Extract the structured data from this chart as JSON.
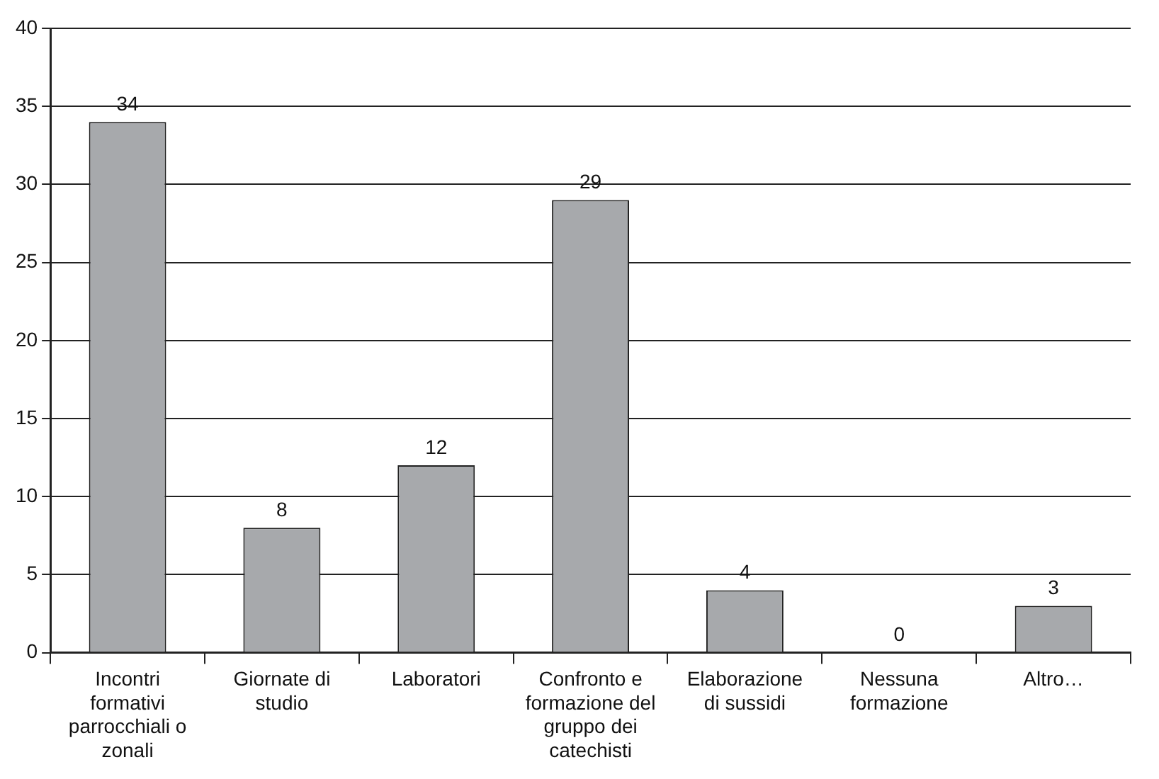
{
  "chart_data": {
    "type": "bar",
    "categories": [
      "Incontri formativi parrocchiali o zonali",
      "Giornate di studio",
      "Laboratori",
      "Confronto e formazione del gruppo dei catechisti",
      "Elaborazione di sussidi",
      "Nessuna formazione",
      "Altro…"
    ],
    "values": [
      34,
      8,
      12,
      29,
      4,
      0,
      3
    ],
    "color": "#a7a9ac",
    "ylim": [
      0,
      40
    ],
    "yticks": [
      0,
      5,
      10,
      15,
      20,
      25,
      30,
      35,
      40
    ],
    "grid": "y",
    "data_labels": true,
    "legend": false
  }
}
